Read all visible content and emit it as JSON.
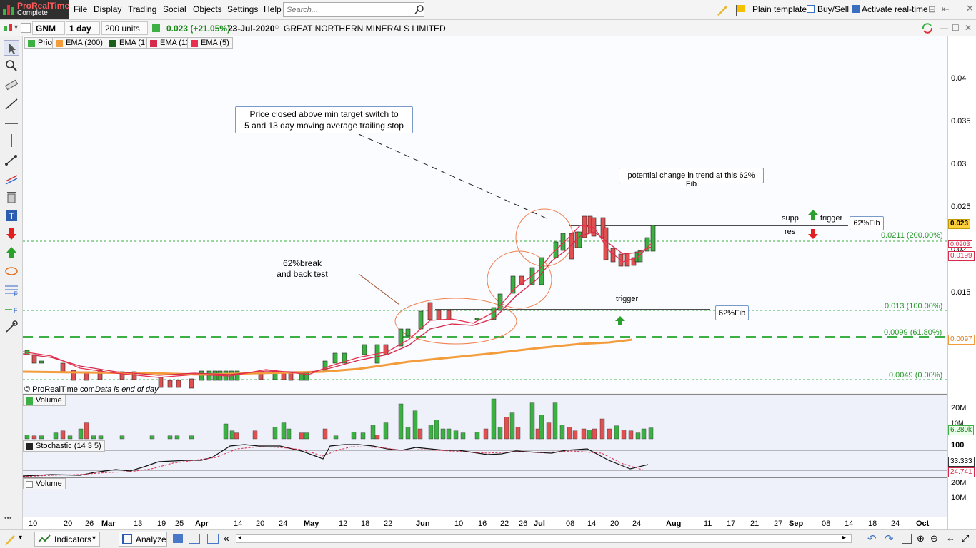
{
  "app": {
    "name": "ProRealTime",
    "edition": "Complete"
  },
  "menu": {
    "items": [
      "File",
      "Display",
      "Trading",
      "Social",
      "Objects",
      "Settings",
      "Help"
    ]
  },
  "search": {
    "placeholder": "Search..."
  },
  "top_right": {
    "plain_template": "Plain template",
    "buy_sell": "Buy/Sell",
    "activate_realtime": "Activate real-time"
  },
  "toolbar": {
    "ticker": "GNM",
    "period": "1 day",
    "units": "200 units",
    "change": "0.023 (+21.05%)",
    "date": "23-Jul-2020",
    "instrument": "GREAT NORTHERN MINERALS LIMITED"
  },
  "legend": [
    {
      "label": "Price",
      "color": "#3cb043"
    },
    {
      "label": "EMA (200)",
      "color": "#f39c3c"
    },
    {
      "label": "EMA (13)",
      "color": "#1a5e1a"
    },
    {
      "label": "EMA (13)",
      "color": "#d62a4a"
    },
    {
      "label": "EMA (5)",
      "color": "#e8304e"
    }
  ],
  "annotations": {
    "box1_line1": "Price closed above min target switch to",
    "box1_line2": "5 and 13 day moving average trailing stop",
    "box2": "potential change in trend at this 62% Fib",
    "break_line1": "62%break",
    "break_line2": "and back test",
    "supp": "supp",
    "res": "res",
    "trigger1": "trigger",
    "trigger2": "trigger",
    "fib_box1": "62%Fib",
    "fib_box2": "62%Fib"
  },
  "fib_levels": [
    {
      "label": "0.0211 (200.00%)"
    },
    {
      "label": "0.013 (100.00%)"
    },
    {
      "label": "0.0099 (61.80%)"
    },
    {
      "label": "0.0049 (0.00%)"
    }
  ],
  "copyright": "© ProRealTime.com",
  "data_end": "Data is end of day",
  "price_axis": {
    "ticks": [
      "0.04",
      "0.035",
      "0.03",
      "0.025",
      "0.02",
      "0.015"
    ],
    "last": "0.023",
    "box1": "0.0203",
    "box2": "0.0199",
    "box3": "0.0097"
  },
  "volume": {
    "title": "Volume",
    "ticks": [
      "20M",
      "10M"
    ],
    "last": "6,280k"
  },
  "stochastic": {
    "title": "Stochastic (14 3 5)",
    "top": "100",
    "v1": "33.333",
    "v2": "24.741"
  },
  "volume2": {
    "title": "Volume",
    "ticks": [
      "20M",
      "10M"
    ]
  },
  "x_axis": {
    "labels": [
      {
        "t": "10",
        "m": false
      },
      {
        "t": "20",
        "m": false
      },
      {
        "t": "26",
        "m": false
      },
      {
        "t": "Mar",
        "m": true
      },
      {
        "t": "13",
        "m": false
      },
      {
        "t": "19",
        "m": false
      },
      {
        "t": "25",
        "m": false
      },
      {
        "t": "Apr",
        "m": true
      },
      {
        "t": "14",
        "m": false
      },
      {
        "t": "20",
        "m": false
      },
      {
        "t": "24",
        "m": false
      },
      {
        "t": "May",
        "m": true
      },
      {
        "t": "12",
        "m": false
      },
      {
        "t": "18",
        "m": false
      },
      {
        "t": "22",
        "m": false
      },
      {
        "t": "Jun",
        "m": true
      },
      {
        "t": "10",
        "m": false
      },
      {
        "t": "16",
        "m": false
      },
      {
        "t": "22",
        "m": false
      },
      {
        "t": "26",
        "m": false
      },
      {
        "t": "Jul",
        "m": true
      },
      {
        "t": "08",
        "m": false
      },
      {
        "t": "14",
        "m": false
      },
      {
        "t": "20",
        "m": false
      },
      {
        "t": "24",
        "m": false
      },
      {
        "t": "Aug",
        "m": true
      },
      {
        "t": "11",
        "m": false
      },
      {
        "t": "17",
        "m": false
      },
      {
        "t": "21",
        "m": false
      },
      {
        "t": "27",
        "m": false
      },
      {
        "t": "Sep",
        "m": true
      },
      {
        "t": "08",
        "m": false
      },
      {
        "t": "14",
        "m": false
      },
      {
        "t": "18",
        "m": false
      },
      {
        "t": "24",
        "m": false
      },
      {
        "t": "Oct",
        "m": true
      }
    ]
  },
  "bottom": {
    "indicators": "Indicators",
    "analyze": "Analyze"
  }
}
